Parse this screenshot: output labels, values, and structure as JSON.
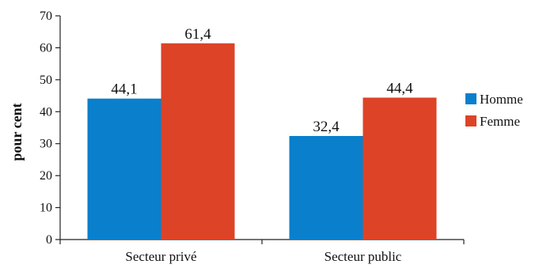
{
  "chart_data": {
    "type": "bar",
    "categories": [
      "Secteur privé",
      "Secteur public"
    ],
    "series": [
      {
        "name": "Homme",
        "values": [
          44.1,
          32.4
        ],
        "labels": [
          "44,1",
          "32,4"
        ],
        "color": "#0a7fcc"
      },
      {
        "name": "Femme",
        "values": [
          61.4,
          44.4
        ],
        "labels": [
          "61,4",
          "44,4"
        ],
        "color": "#dd4327"
      }
    ],
    "ylabel": "pour cent",
    "xlabel": "",
    "ylim": [
      0,
      70
    ],
    "yticks": [
      0,
      10,
      20,
      30,
      40,
      50,
      60,
      70
    ],
    "legend_position": "right",
    "grid": false
  }
}
